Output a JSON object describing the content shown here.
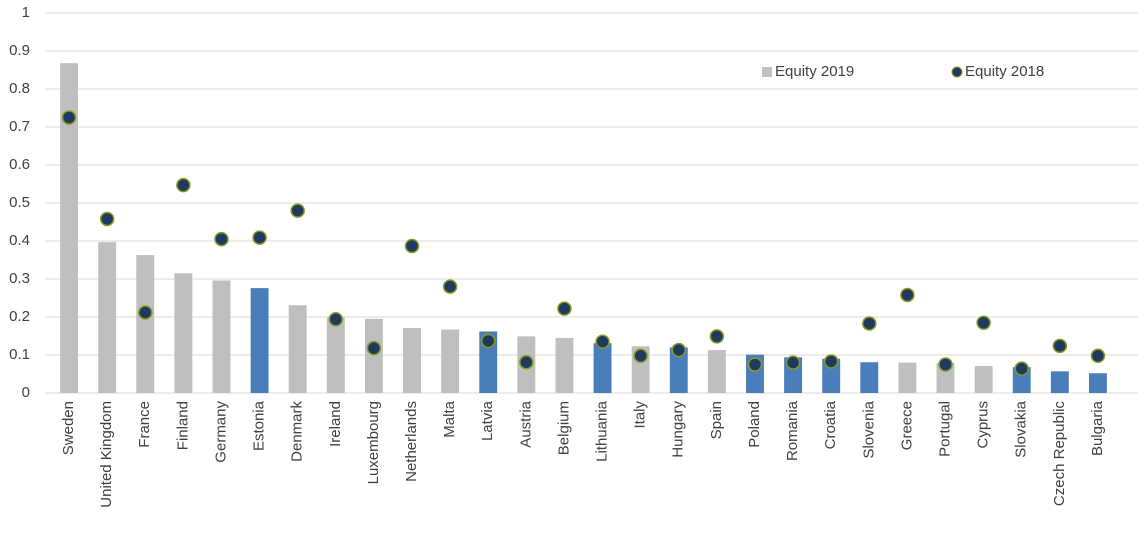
{
  "chart_data": {
    "type": "bar",
    "categories": [
      "Sweden",
      "United Kingdom",
      "France",
      "Finland",
      "Germany",
      "Estonia",
      "Denmark",
      "Ireland",
      "Luxembourg",
      "Netherlands",
      "Malta",
      "Latvia",
      "Austria",
      "Belgium",
      "Lithuania",
      "Italy",
      "Hungary",
      "Spain",
      "Poland",
      "Romania",
      "Croatia",
      "Slovenia",
      "Greece",
      "Portugal",
      "Cyprus",
      "Slovakia",
      "Czech Republic",
      "Bulgaria"
    ],
    "series": [
      {
        "name": "Equity 2019",
        "mark": "bar",
        "color": "#bfbfbf",
        "colors": [
          "#bfbfbf",
          "#bfbfbf",
          "#bfbfbf",
          "#bfbfbf",
          "#bfbfbf",
          "#4a7ebb",
          "#bfbfbf",
          "#bfbfbf",
          "#bfbfbf",
          "#bfbfbf",
          "#bfbfbf",
          "#4a7ebb",
          "#bfbfbf",
          "#bfbfbf",
          "#4a7ebb",
          "#bfbfbf",
          "#4a7ebb",
          "#bfbfbf",
          "#4a7ebb",
          "#4a7ebb",
          "#4a7ebb",
          "#4a7ebb",
          "#bfbfbf",
          "#bfbfbf",
          "#bfbfbf",
          "#4a7ebb",
          "#4a7ebb",
          "#4a7ebb"
        ],
        "values": [
          0.868,
          0.397,
          0.363,
          0.315,
          0.296,
          0.276,
          0.231,
          0.199,
          0.195,
          0.171,
          0.167,
          0.162,
          0.149,
          0.145,
          0.131,
          0.123,
          0.12,
          0.113,
          0.101,
          0.094,
          0.09,
          0.081,
          0.08,
          0.079,
          0.071,
          0.068,
          0.057,
          0.052
        ]
      },
      {
        "name": "Equity 2018",
        "mark": "dot",
        "color": "#1f3a5f",
        "edge_color": "#8c9a1e",
        "values": [
          0.725,
          0.458,
          0.212,
          0.547,
          0.405,
          0.409,
          0.48,
          0.194,
          0.118,
          0.387,
          0.28,
          0.137,
          0.081,
          0.222,
          0.135,
          0.098,
          0.113,
          0.149,
          0.075,
          0.08,
          0.083,
          0.183,
          0.258,
          0.075,
          0.185,
          0.064,
          0.124,
          0.098
        ]
      }
    ],
    "ylim": [
      0,
      1
    ],
    "yticks": [
      0,
      0.1,
      0.2,
      0.3,
      0.4,
      0.5,
      0.6,
      0.7,
      0.8,
      0.9,
      1
    ],
    "grid": true,
    "legend": "top-right"
  }
}
